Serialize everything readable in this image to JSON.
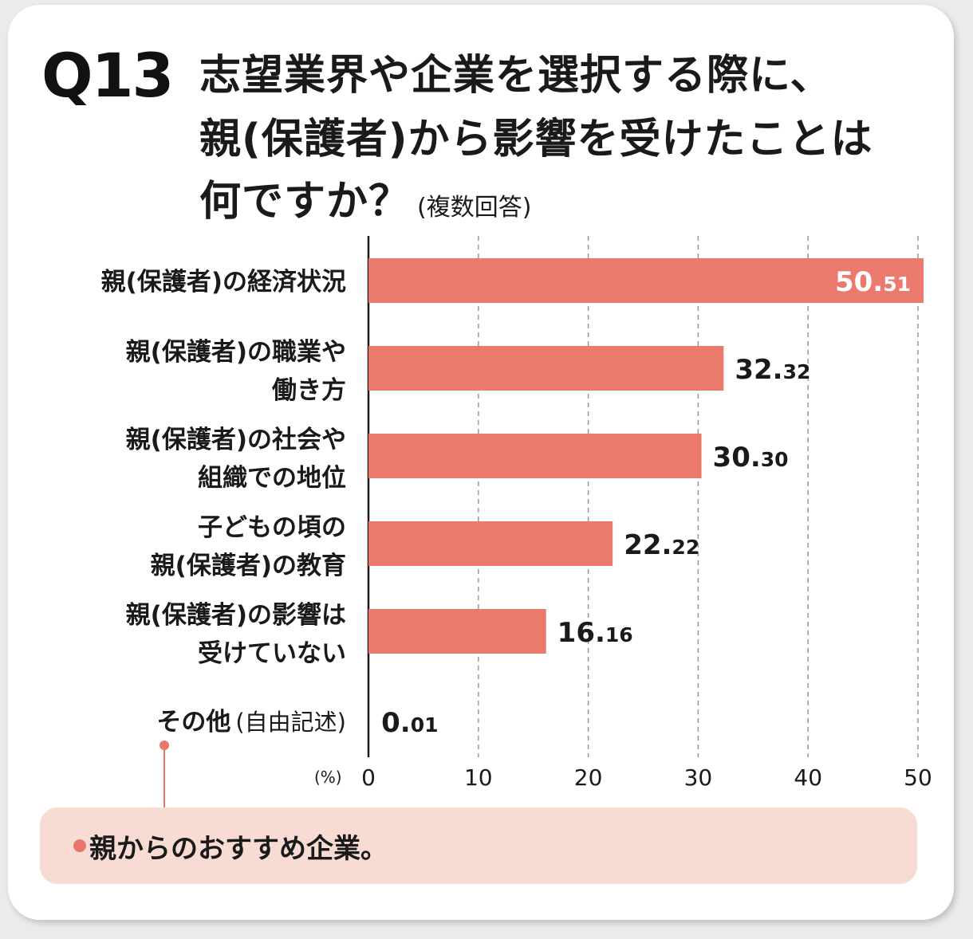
{
  "question": {
    "number": "Q13",
    "lines": [
      "志望業界や企業を選択する際に、",
      "親(保護者)から影響を受けたことは",
      "何ですか？"
    ],
    "note": "(複数回答)"
  },
  "chart_data": {
    "type": "bar",
    "orientation": "horizontal",
    "categories": [
      [
        "親(保護者)の経済状況"
      ],
      [
        "親(保護者)の職業や",
        "働き方"
      ],
      [
        "親(保護者)の社会や",
        "組織での地位"
      ],
      [
        "子どもの頃の",
        "親(保護者)の教育"
      ],
      [
        "親(保護者)の影響は",
        "受けていない"
      ],
      [
        "その他",
        "(自由記述)"
      ]
    ],
    "values": [
      50.51,
      32.32,
      30.3,
      22.22,
      16.16,
      0.01
    ],
    "value_labels": [
      {
        "int": "50.",
        "dec": "51"
      },
      {
        "int": "32.",
        "dec": "32"
      },
      {
        "int": "30.",
        "dec": "30"
      },
      {
        "int": "22.",
        "dec": "22"
      },
      {
        "int": "16.",
        "dec": "16"
      },
      {
        "int": "0.",
        "dec": "01"
      }
    ],
    "xlim": [
      0,
      50
    ],
    "xticks": [
      "0",
      "10",
      "20",
      "30",
      "40",
      "50"
    ],
    "xunit": "(%)",
    "grid": true,
    "colors": {
      "bar": "#ec7a6c",
      "inside_label": "#ffffff",
      "outside_label": "#1a1a1a",
      "grid": "#999999"
    }
  },
  "callout": {
    "text": "親からのおすすめ企業。",
    "colors": {
      "background": "#f8dcd3",
      "accent": "#e8766a"
    }
  }
}
